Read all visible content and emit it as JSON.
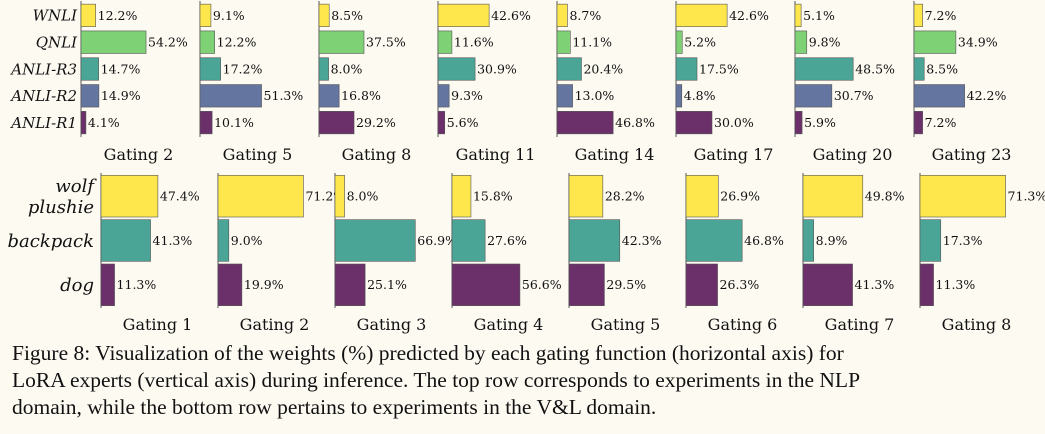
{
  "caption": {
    "lines": [
      "Figure 8: Visualization of the weights (%) predicted by each gating function (horizontal axis) for",
      "LoRA experts (vertical axis) during inference. The top row corresponds to experiments in the NLP",
      "domain, while the bottom row pertains to experiments in the V&L domain."
    ]
  },
  "chart_data": [
    {
      "type": "bar",
      "orientation": "horizontal",
      "row": "top",
      "categories": [
        "WNLI",
        "QNLI",
        "ANLI-R3",
        "ANLI-R2",
        "ANLI-R1"
      ],
      "colors": [
        "#fde74c",
        "#7fd175",
        "#4aa596",
        "#6475a0",
        "#6b2f6a"
      ],
      "panels": [
        {
          "name": "Gating 2",
          "values": [
            12.2,
            54.2,
            14.7,
            14.9,
            4.1
          ]
        },
        {
          "name": "Gating 5",
          "values": [
            9.1,
            12.2,
            17.2,
            51.3,
            10.1
          ]
        },
        {
          "name": "Gating 8",
          "values": [
            8.5,
            37.5,
            8.0,
            16.8,
            29.2
          ]
        },
        {
          "name": "Gating 11",
          "values": [
            42.6,
            11.6,
            30.9,
            9.3,
            5.6
          ]
        },
        {
          "name": "Gating 14",
          "values": [
            8.7,
            11.1,
            20.4,
            13.0,
            46.8
          ]
        },
        {
          "name": "Gating 17",
          "values": [
            42.6,
            5.2,
            17.5,
            4.8,
            30.0
          ]
        },
        {
          "name": "Gating 20",
          "values": [
            5.1,
            9.8,
            48.5,
            30.7,
            5.9
          ]
        },
        {
          "name": "Gating 23",
          "values": [
            7.2,
            34.9,
            8.5,
            42.2,
            7.2
          ]
        }
      ],
      "unit": "%"
    },
    {
      "type": "bar",
      "orientation": "horizontal",
      "row": "bottom",
      "categories": [
        "wolf\nplushie",
        "backpack",
        "dog"
      ],
      "colors": [
        "#fde74c",
        "#4aa596",
        "#6b2f6a"
      ],
      "panels": [
        {
          "name": "Gating 1",
          "values": [
            47.4,
            41.3,
            11.3
          ]
        },
        {
          "name": "Gating 2",
          "values": [
            71.2,
            9.0,
            19.9
          ]
        },
        {
          "name": "Gating 3",
          "values": [
            8.0,
            66.9,
            25.1
          ]
        },
        {
          "name": "Gating 4",
          "values": [
            15.8,
            27.6,
            56.6
          ]
        },
        {
          "name": "Gating 5",
          "values": [
            28.2,
            42.3,
            29.5
          ]
        },
        {
          "name": "Gating 6",
          "values": [
            26.9,
            46.8,
            26.3
          ]
        },
        {
          "name": "Gating 7",
          "values": [
            49.8,
            8.9,
            41.3
          ]
        },
        {
          "name": "Gating 8",
          "values": [
            71.3,
            17.3,
            11.3
          ]
        }
      ],
      "unit": "%"
    }
  ]
}
